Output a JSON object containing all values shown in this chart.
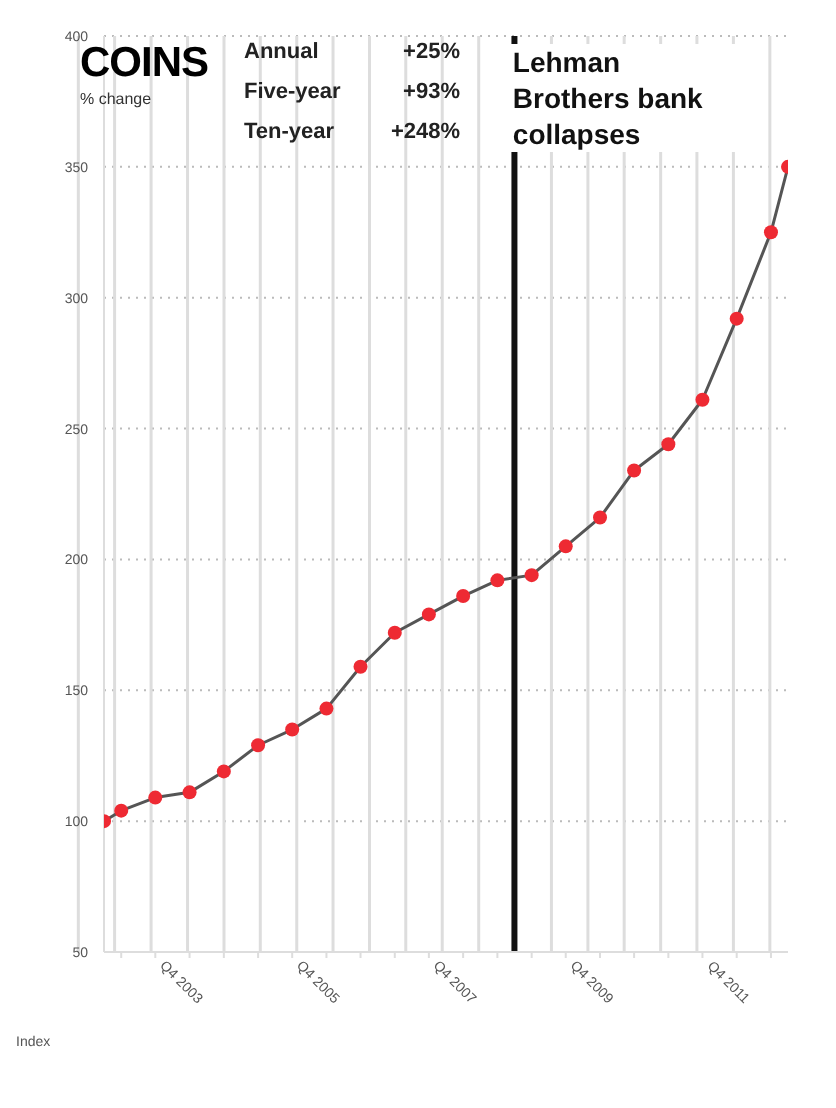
{
  "chart_data": {
    "type": "line",
    "title": "COINS",
    "subtitle": "% change",
    "ylabel": "Index",
    "annotations": [
      "Annual +25%",
      "Five-year +93%",
      "Ten-year +248%"
    ],
    "x": [
      "2002-07",
      "2002-10",
      "2003-04",
      "2003-10",
      "2004-04",
      "2004-10",
      "2005-04",
      "2005-10",
      "2006-04",
      "2006-10",
      "2007-04",
      "2007-10",
      "2008-04",
      "2008-10",
      "2009-04",
      "2009-10",
      "2010-04",
      "2010-10",
      "2011-04",
      "2011-10",
      "2012-04",
      "2012-07"
    ],
    "series": [
      {
        "color": "#ee2a33",
        "values": [
          100,
          104,
          109,
          111,
          119,
          129,
          135,
          143,
          159,
          172,
          179,
          186,
          192,
          194,
          205,
          216,
          234,
          244,
          261,
          292,
          325,
          350
        ]
      }
    ],
    "xlim": [
      "2002-07",
      "2012-07"
    ],
    "xticks": [
      {
        "value": "2002-10",
        "label": null
      },
      {
        "value": "2003-04",
        "label": null
      },
      {
        "value": "2003-10",
        "label": "Q4 2003"
      },
      {
        "value": "2004-04",
        "label": null
      },
      {
        "value": "2004-10",
        "label": null
      },
      {
        "value": "2005-04",
        "label": null
      },
      {
        "value": "2005-10",
        "label": "Q4 2005"
      },
      {
        "value": "2006-04",
        "label": null
      },
      {
        "value": "2006-10",
        "label": null
      },
      {
        "value": "2007-04",
        "label": null
      },
      {
        "value": "2007-10",
        "label": "Q4 2007"
      },
      {
        "value": "2008-04",
        "label": null
      },
      {
        "value": "2008-10",
        "label": null
      },
      {
        "value": "2009-04",
        "label": null
      },
      {
        "value": "2009-10",
        "label": "Q4 2009"
      },
      {
        "value": "2010-04",
        "label": null
      },
      {
        "value": "2010-10",
        "label": null
      },
      {
        "value": "2011-04",
        "label": null
      },
      {
        "value": "2011-10",
        "label": "Q4 2011"
      },
      {
        "value": "2012-04",
        "label": null
      }
    ],
    "ylim": [
      50,
      400
    ],
    "yticks": [
      50,
      100,
      150,
      200,
      250,
      300,
      350,
      400
    ],
    "ref_lines": [
      {
        "axis": "x",
        "value": "2008-07",
        "label": "Lehman Brothers bank collapses",
        "color": "#111111"
      }
    ],
    "grid": true,
    "marker": "circle",
    "line_style": "solid"
  }
}
